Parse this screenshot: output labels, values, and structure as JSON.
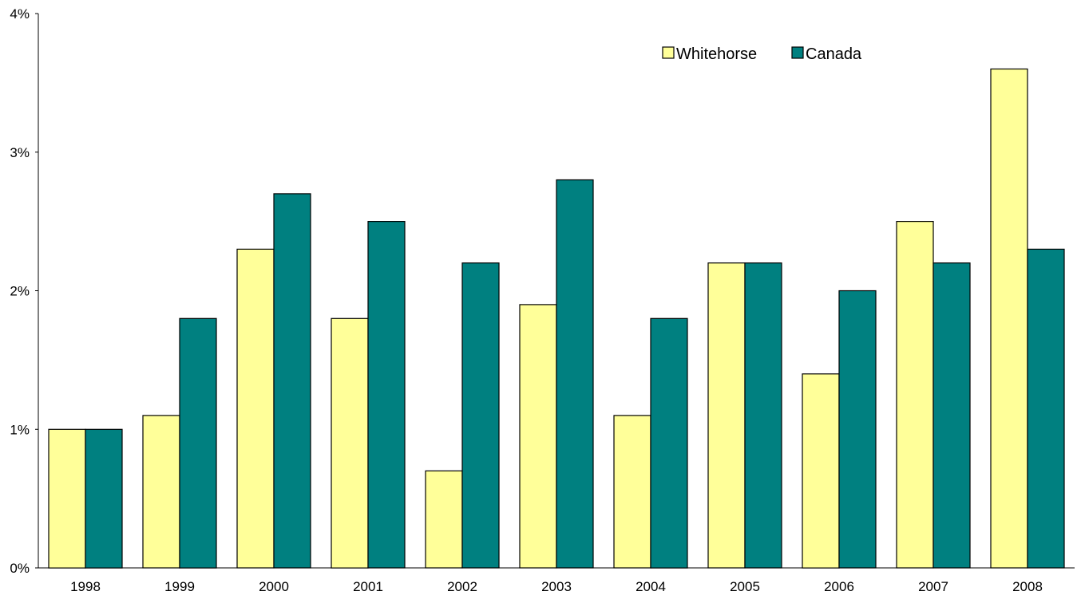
{
  "chart_data": {
    "type": "bar",
    "title": "",
    "xlabel": "",
    "ylabel": "",
    "categories": [
      "1998",
      "1999",
      "2000",
      "2001",
      "2002",
      "2003",
      "2004",
      "2005",
      "2006",
      "2007",
      "2008"
    ],
    "series": [
      {
        "name": "Whitehorse",
        "color": "#FFFF99",
        "values": [
          1.0,
          1.1,
          2.3,
          1.8,
          0.7,
          1.9,
          1.1,
          2.2,
          1.4,
          2.5,
          3.6
        ]
      },
      {
        "name": "Canada",
        "color": "#008080",
        "values": [
          1.0,
          1.8,
          2.7,
          2.5,
          2.2,
          2.8,
          1.8,
          2.2,
          2.0,
          2.2,
          2.3
        ]
      }
    ],
    "ylim": [
      0,
      4
    ],
    "y_ticks": [
      0,
      1,
      2,
      3,
      4
    ],
    "y_tick_labels": [
      "0%",
      "1%",
      "2%",
      "3%",
      "4%"
    ],
    "grid": false,
    "legend_position": "top-right"
  }
}
